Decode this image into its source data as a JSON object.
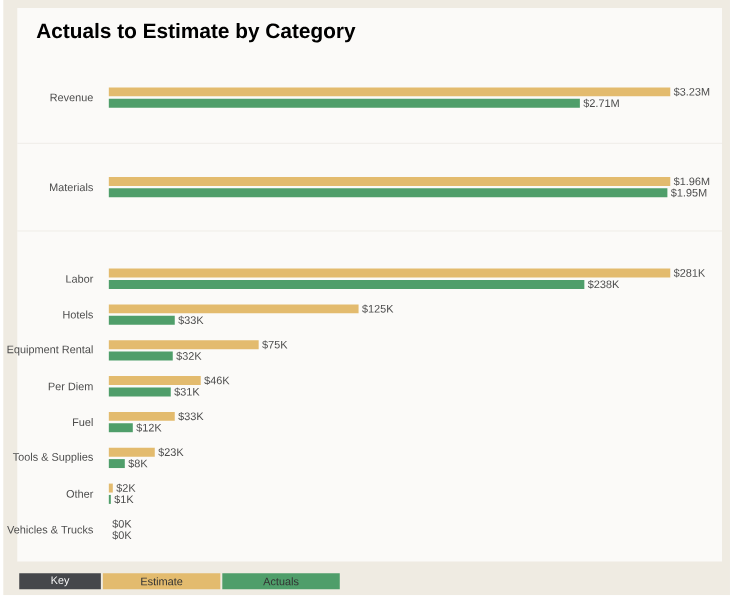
{
  "chart_data": [
    {
      "type": "bar",
      "orientation": "horizontal",
      "title": "Actuals to Estimate by Category",
      "categories": [
        "Revenue"
      ],
      "series": [
        {
          "color": "#e3bb6e",
          "values": [
            3230000
          ],
          "value_labels": [
            "$3.23M"
          ]
        },
        {
          "color": "#4f9e6a",
          "values": [
            2710000
          ],
          "value_labels": [
            "$2.71M"
          ]
        }
      ]
    },
    {
      "type": "bar",
      "orientation": "horizontal",
      "categories": [
        "Materials"
      ],
      "series": [
        {
          "color": "#e3bb6e",
          "values": [
            1960000
          ],
          "value_labels": [
            "$1.96M"
          ]
        },
        {
          "color": "#4f9e6a",
          "values": [
            1950000
          ],
          "value_labels": [
            "$1.95M"
          ]
        }
      ]
    },
    {
      "type": "bar",
      "orientation": "horizontal",
      "categories": [
        "Labor",
        "Hotels",
        "Equipment Rental",
        "Per Diem",
        "Fuel",
        "Tools & Supplies",
        "Other",
        "Vehicles & Trucks"
      ],
      "series": [
        {
          "name": "Estimate",
          "color": "#e3bb6e",
          "values": [
            281000,
            125000,
            75000,
            46000,
            33000,
            23000,
            2000,
            0
          ],
          "value_labels": [
            "$281K",
            "$125K",
            "$75K",
            "$46K",
            "$33K",
            "$23K",
            "$2K",
            "$0K"
          ]
        },
        {
          "name": "Actuals",
          "color": "#4f9e6a",
          "values": [
            238000,
            33000,
            32000,
            31000,
            12000,
            8000,
            1000,
            0
          ],
          "value_labels": [
            "$238K",
            "$33K",
            "$32K",
            "$31K",
            "$12K",
            "$8K",
            "$1K",
            "$0K"
          ]
        }
      ],
      "legend": "bottom left",
      "legend_title": "Key"
    }
  ]
}
